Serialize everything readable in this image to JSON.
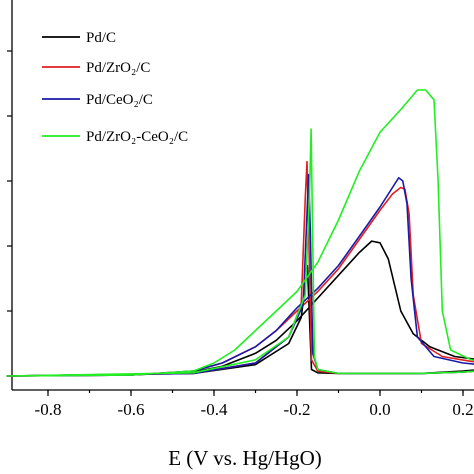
{
  "chart_data": {
    "type": "line",
    "title": "",
    "xlabel": "E (V vs. Hg/HgO)",
    "ylabel": "",
    "xlim": [
      -0.9,
      0.28
    ],
    "ylim": [
      -0.05,
      1.15
    ],
    "x_ticks": [
      -0.8,
      -0.6,
      -0.4,
      -0.2,
      0.0,
      0.2
    ],
    "x_tick_labels": [
      "-0.8",
      "-0.6",
      "-0.4",
      "-0.2",
      "0.0",
      "0.2"
    ],
    "y_ticks": [
      0.0,
      0.2,
      0.4,
      0.6,
      0.8,
      1.0
    ],
    "y_tick_labels": [
      "",
      "",
      "",
      "",
      "",
      ""
    ],
    "grid": false,
    "legend_position": "top-left",
    "series": [
      {
        "name": "Pd/C",
        "color": "#000000",
        "forward": [
          [
            -0.9,
            0.0
          ],
          [
            -0.6,
            0.003
          ],
          [
            -0.45,
            0.012
          ],
          [
            -0.38,
            0.03
          ],
          [
            -0.3,
            0.07
          ],
          [
            -0.25,
            0.11
          ],
          [
            -0.2,
            0.17
          ],
          [
            -0.15,
            0.24
          ],
          [
            -0.1,
            0.31
          ],
          [
            -0.05,
            0.38
          ],
          [
            -0.02,
            0.415
          ],
          [
            0.0,
            0.41
          ],
          [
            0.02,
            0.36
          ],
          [
            0.05,
            0.2
          ],
          [
            0.08,
            0.13
          ],
          [
            0.12,
            0.09
          ],
          [
            0.18,
            0.06
          ],
          [
            0.24,
            0.05
          ],
          [
            0.28,
            0.045
          ]
        ],
        "reverse": [
          [
            0.28,
            0.025
          ],
          [
            0.2,
            0.015
          ],
          [
            0.1,
            0.008
          ],
          [
            0.0,
            0.008
          ],
          [
            -0.1,
            0.008
          ],
          [
            -0.15,
            0.01
          ],
          [
            -0.165,
            0.02
          ],
          [
            -0.172,
            0.25
          ],
          [
            -0.175,
            0.34
          ],
          [
            -0.178,
            0.3
          ],
          [
            -0.19,
            0.18
          ],
          [
            -0.22,
            0.1
          ],
          [
            -0.3,
            0.035
          ],
          [
            -0.45,
            0.008
          ],
          [
            -0.9,
            0.0
          ]
        ]
      },
      {
        "name": "Pd/ZrO2/C",
        "color": "#e02020",
        "forward": [
          [
            -0.9,
            0.0
          ],
          [
            -0.6,
            0.003
          ],
          [
            -0.45,
            0.015
          ],
          [
            -0.38,
            0.04
          ],
          [
            -0.3,
            0.09
          ],
          [
            -0.25,
            0.14
          ],
          [
            -0.2,
            0.2
          ],
          [
            -0.15,
            0.26
          ],
          [
            -0.1,
            0.33
          ],
          [
            -0.05,
            0.42
          ],
          [
            0.0,
            0.51
          ],
          [
            0.03,
            0.56
          ],
          [
            0.05,
            0.58
          ],
          [
            0.06,
            0.575
          ],
          [
            0.07,
            0.5
          ],
          [
            0.08,
            0.25
          ],
          [
            0.1,
            0.1
          ],
          [
            0.15,
            0.06
          ],
          [
            0.22,
            0.045
          ],
          [
            0.28,
            0.04
          ]
        ],
        "reverse": [
          [
            0.28,
            0.02
          ],
          [
            0.2,
            0.012
          ],
          [
            0.1,
            0.008
          ],
          [
            0.0,
            0.008
          ],
          [
            -0.1,
            0.008
          ],
          [
            -0.15,
            0.015
          ],
          [
            -0.165,
            0.05
          ],
          [
            -0.172,
            0.45
          ],
          [
            -0.176,
            0.66
          ],
          [
            -0.18,
            0.55
          ],
          [
            -0.19,
            0.22
          ],
          [
            -0.22,
            0.12
          ],
          [
            -0.3,
            0.04
          ],
          [
            -0.45,
            0.008
          ],
          [
            -0.9,
            0.0
          ]
        ]
      },
      {
        "name": "Pd/CeO2/C",
        "color": "#1a1aa8",
        "forward": [
          [
            -0.9,
            0.0
          ],
          [
            -0.6,
            0.003
          ],
          [
            -0.45,
            0.015
          ],
          [
            -0.38,
            0.04
          ],
          [
            -0.3,
            0.09
          ],
          [
            -0.25,
            0.14
          ],
          [
            -0.2,
            0.21
          ],
          [
            -0.15,
            0.27
          ],
          [
            -0.1,
            0.34
          ],
          [
            -0.05,
            0.43
          ],
          [
            0.0,
            0.52
          ],
          [
            0.03,
            0.58
          ],
          [
            0.045,
            0.61
          ],
          [
            0.055,
            0.6
          ],
          [
            0.065,
            0.53
          ],
          [
            0.075,
            0.3
          ],
          [
            0.09,
            0.12
          ],
          [
            0.13,
            0.06
          ],
          [
            0.2,
            0.04
          ],
          [
            0.28,
            0.03
          ]
        ],
        "reverse": [
          [
            0.28,
            0.02
          ],
          [
            0.2,
            0.012
          ],
          [
            0.1,
            0.008
          ],
          [
            0.0,
            0.008
          ],
          [
            -0.1,
            0.008
          ],
          [
            -0.15,
            0.02
          ],
          [
            -0.162,
            0.07
          ],
          [
            -0.168,
            0.45
          ],
          [
            -0.172,
            0.62
          ],
          [
            -0.176,
            0.5
          ],
          [
            -0.185,
            0.22
          ],
          [
            -0.22,
            0.12
          ],
          [
            -0.3,
            0.04
          ],
          [
            -0.45,
            0.008
          ],
          [
            -0.9,
            0.0
          ]
        ]
      },
      {
        "name": "Pd/ZrO2-CeO2/C",
        "color": "#22ee22",
        "forward": [
          [
            -0.9,
            0.0
          ],
          [
            -0.6,
            0.003
          ],
          [
            -0.45,
            0.015
          ],
          [
            -0.4,
            0.04
          ],
          [
            -0.35,
            0.08
          ],
          [
            -0.3,
            0.14
          ],
          [
            -0.25,
            0.2
          ],
          [
            -0.2,
            0.26
          ],
          [
            -0.15,
            0.35
          ],
          [
            -0.1,
            0.48
          ],
          [
            -0.05,
            0.63
          ],
          [
            0.0,
            0.75
          ],
          [
            0.05,
            0.82
          ],
          [
            0.09,
            0.88
          ],
          [
            0.11,
            0.88
          ],
          [
            0.13,
            0.85
          ],
          [
            0.14,
            0.6
          ],
          [
            0.15,
            0.2
          ],
          [
            0.17,
            0.08
          ],
          [
            0.22,
            0.05
          ],
          [
            0.28,
            0.04
          ]
        ],
        "reverse": [
          [
            0.28,
            0.02
          ],
          [
            0.2,
            0.012
          ],
          [
            0.1,
            0.008
          ],
          [
            0.0,
            0.008
          ],
          [
            -0.1,
            0.008
          ],
          [
            -0.15,
            0.02
          ],
          [
            -0.158,
            0.06
          ],
          [
            -0.162,
            0.4
          ],
          [
            -0.166,
            0.76
          ],
          [
            -0.17,
            0.55
          ],
          [
            -0.18,
            0.25
          ],
          [
            -0.22,
            0.12
          ],
          [
            -0.3,
            0.05
          ],
          [
            -0.45,
            0.01
          ],
          [
            -0.9,
            0.0
          ]
        ]
      }
    ]
  },
  "legend": {
    "items": [
      {
        "label": "Pd/C",
        "color": "#000000"
      },
      {
        "label": "Pd/ZrO₂/C",
        "color": "#e02020"
      },
      {
        "label": "Pd/CeO₂/C",
        "color": "#1a1aa8"
      },
      {
        "label": "Pd/ZrO₂-CeO₂/C",
        "color": "#22ee22"
      }
    ]
  }
}
